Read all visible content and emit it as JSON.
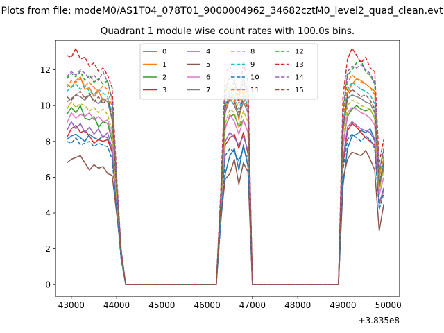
{
  "figure": {
    "suptitle": "Plots from file: modeM0/AS1T04_078T01_9000004962_34682cztM0_level2_quad_clean.evt",
    "background": "#ffffff"
  },
  "chart_data": {
    "type": "line",
    "title": "Quadrant 1 module wise count rates with 100.0s bins.",
    "xlabel": "",
    "ylabel": "",
    "x_offset_label": "+3.835e8",
    "xlim": [
      42650,
      50250
    ],
    "ylim": [
      -0.65,
      13.65
    ],
    "x_ticks": [
      43000,
      44000,
      45000,
      46000,
      47000,
      48000,
      49000,
      50000
    ],
    "x_tick_labels": [
      "43000",
      "44000",
      "45000",
      "46000",
      "47000",
      "48000",
      "49000",
      "50000"
    ],
    "y_ticks": [
      0,
      2,
      4,
      6,
      8,
      10,
      12
    ],
    "y_tick_labels": [
      "0",
      "2",
      "4",
      "6",
      "8",
      "10",
      "12"
    ],
    "grid": false,
    "legend": {
      "placement": "upper-center",
      "columns": 4
    },
    "x": [
      42900,
      43000,
      43100,
      43200,
      43300,
      43400,
      43500,
      43600,
      43700,
      43800,
      43900,
      44000,
      44100,
      44200,
      46200,
      46300,
      46400,
      46500,
      46600,
      46700,
      46800,
      46900,
      47000,
      48900,
      49000,
      49100,
      49200,
      49300,
      49400,
      49500,
      49600,
      49700,
      49800,
      49900
    ],
    "series": [
      {
        "name": "0",
        "color": "#1f77b4",
        "dash": "solid",
        "values": [
          8.1,
          8.3,
          8.4,
          8.2,
          8.0,
          8.4,
          8.2,
          8.1,
          8.3,
          8.2,
          7.4,
          4.5,
          1.5,
          0,
          0,
          3.5,
          6.2,
          7.2,
          7.6,
          6.4,
          7.8,
          6.6,
          0,
          0,
          5.5,
          7.6,
          8.3,
          8.4,
          8.6,
          8.5,
          8.7,
          8.1,
          4.5,
          5.4
        ]
      },
      {
        "name": "1",
        "color": "#ff7f0e",
        "dash": "solid",
        "values": [
          11.2,
          11.0,
          11.4,
          11.6,
          10.9,
          11.0,
          10.5,
          10.8,
          10.3,
          10.4,
          9.2,
          5.2,
          1.9,
          0,
          0,
          4.5,
          9.8,
          10.6,
          10.4,
          9.2,
          10.7,
          9.9,
          0,
          0,
          8.8,
          10.7,
          11.2,
          11.5,
          11.4,
          11.2,
          11.0,
          10.8,
          6.2,
          7.0
        ]
      },
      {
        "name": "2",
        "color": "#2ca02c",
        "dash": "solid",
        "values": [
          9.5,
          9.9,
          9.6,
          10.0,
          9.3,
          9.2,
          9.4,
          8.8,
          9.1,
          9.0,
          8.0,
          4.6,
          1.6,
          0,
          0,
          4.0,
          8.8,
          9.4,
          9.5,
          8.8,
          9.2,
          8.5,
          0,
          0,
          7.8,
          9.4,
          9.8,
          10.0,
          9.8,
          9.7,
          9.8,
          9.3,
          5.4,
          6.5
        ]
      },
      {
        "name": "3",
        "color": "#d62728",
        "dash": "solid",
        "values": [
          8.2,
          8.7,
          8.9,
          8.5,
          8.6,
          8.3,
          7.9,
          8.1,
          8.0,
          8.1,
          7.4,
          4.3,
          1.5,
          0,
          0,
          3.6,
          7.8,
          8.2,
          8.4,
          7.6,
          8.5,
          7.3,
          0,
          0,
          6.7,
          8.6,
          9.0,
          8.8,
          8.5,
          8.2,
          8.0,
          7.8,
          4.5,
          5.3
        ]
      },
      {
        "name": "4",
        "color": "#9467bd",
        "dash": "solid",
        "values": [
          8.6,
          9.1,
          8.7,
          9.0,
          8.5,
          8.8,
          8.4,
          8.7,
          8.2,
          8.5,
          7.6,
          4.4,
          1.5,
          0,
          0,
          3.7,
          8.0,
          8.5,
          8.2,
          7.8,
          8.3,
          7.5,
          0,
          0,
          7.0,
          8.8,
          9.1,
          8.9,
          8.7,
          8.6,
          8.5,
          8.0,
          4.6,
          5.3
        ]
      },
      {
        "name": "5",
        "color": "#8c564b",
        "dash": "solid",
        "values": [
          6.8,
          7.0,
          7.1,
          7.2,
          6.8,
          6.4,
          6.7,
          6.5,
          6.6,
          6.2,
          6.1,
          4.0,
          1.8,
          0,
          0,
          3.7,
          5.9,
          6.2,
          7.0,
          5.6,
          6.8,
          6.3,
          0,
          0,
          5.9,
          7.0,
          7.4,
          7.3,
          7.2,
          7.5,
          7.0,
          6.4,
          3.0,
          4.5
        ]
      },
      {
        "name": "6",
        "color": "#e377c2",
        "dash": "solid",
        "values": [
          9.0,
          9.6,
          9.3,
          9.5,
          9.4,
          9.6,
          9.2,
          9.4,
          9.1,
          9.2,
          8.3,
          4.8,
          1.6,
          0,
          0,
          3.9,
          8.7,
          9.5,
          9.1,
          8.4,
          9.2,
          8.5,
          0,
          0,
          7.6,
          9.6,
          9.9,
          9.8,
          9.6,
          9.5,
          9.3,
          8.9,
          5.0,
          6.0
        ]
      },
      {
        "name": "7",
        "color": "#7f7f7f",
        "dash": "solid",
        "values": [
          10.2,
          10.4,
          10.6,
          10.5,
          10.3,
          10.6,
          10.3,
          10.1,
          10.4,
          10.2,
          9.2,
          5.2,
          1.7,
          0,
          0,
          4.3,
          9.6,
          10.4,
          10.0,
          9.4,
          10.2,
          9.6,
          0,
          0,
          8.5,
          10.4,
          10.6,
          10.5,
          10.4,
          10.2,
          10.1,
          9.6,
          5.5,
          6.7
        ]
      },
      {
        "name": "8",
        "color": "#bcbd22",
        "dash": "dashed",
        "values": [
          9.8,
          10.2,
          9.9,
          10.1,
          10.0,
          9.7,
          9.9,
          9.6,
          9.8,
          9.5,
          8.6,
          4.9,
          1.6,
          0,
          0,
          4.0,
          9.0,
          9.8,
          9.6,
          8.8,
          9.7,
          9.1,
          0,
          0,
          8.2,
          10.0,
          10.3,
          10.2,
          10.0,
          9.9,
          9.8,
          9.3,
          5.2,
          6.4
        ]
      },
      {
        "name": "9",
        "color": "#17becf",
        "dash": "dashed",
        "values": [
          10.8,
          11.0,
          11.2,
          10.9,
          11.1,
          10.8,
          10.6,
          10.9,
          10.7,
          10.5,
          9.6,
          5.4,
          1.8,
          0,
          0,
          4.4,
          10.0,
          10.8,
          10.5,
          9.8,
          10.6,
          10.0,
          0,
          0,
          8.9,
          10.9,
          11.3,
          11.1,
          10.9,
          10.8,
          10.6,
          10.1,
          5.8,
          6.9
        ]
      },
      {
        "name": "10",
        "color": "#1f77b4",
        "dash": "dashed",
        "values": [
          8.0,
          7.9,
          8.2,
          7.8,
          7.9,
          8.0,
          7.7,
          7.9,
          7.8,
          7.7,
          7.0,
          4.2,
          1.4,
          0,
          0,
          3.4,
          7.2,
          7.6,
          7.4,
          6.9,
          7.6,
          7.0,
          0,
          0,
          6.4,
          8.1,
          8.4,
          8.2,
          8.0,
          8.3,
          8.1,
          7.6,
          4.2,
          5.1
        ]
      },
      {
        "name": "11",
        "color": "#ff7f0e",
        "dash": "dashed",
        "values": [
          11.0,
          11.4,
          11.3,
          11.5,
          11.1,
          11.3,
          11.0,
          10.8,
          11.1,
          10.9,
          9.9,
          5.6,
          1.8,
          0,
          0,
          4.6,
          10.3,
          11.1,
          10.9,
          10.1,
          10.9,
          10.3,
          0,
          0,
          9.2,
          11.3,
          11.7,
          11.5,
          11.3,
          11.2,
          11.0,
          10.6,
          6.0,
          7.2
        ]
      },
      {
        "name": "12",
        "color": "#2ca02c",
        "dash": "dashed",
        "values": [
          11.5,
          11.8,
          11.6,
          11.9,
          11.4,
          11.7,
          11.3,
          11.5,
          11.2,
          11.4,
          10.3,
          5.8,
          1.9,
          0,
          0,
          4.8,
          10.7,
          11.5,
          11.1,
          10.5,
          11.3,
          10.7,
          0,
          0,
          9.6,
          11.7,
          12.0,
          12.4,
          12.5,
          11.9,
          11.7,
          11.2,
          6.3,
          7.5
        ]
      },
      {
        "name": "13",
        "color": "#d62728",
        "dash": "dashed",
        "values": [
          12.8,
          12.7,
          13.2,
          12.6,
          12.7,
          12.2,
          12.4,
          11.9,
          12.1,
          11.7,
          11.0,
          6.1,
          2.0,
          0,
          0,
          5.2,
          11.8,
          12.2,
          11.5,
          10.2,
          12.4,
          11.3,
          0,
          0,
          10.5,
          12.6,
          13.2,
          12.8,
          12.4,
          12.7,
          12.1,
          11.9,
          6.8,
          8.1
        ]
      },
      {
        "name": "14",
        "color": "#9467bd",
        "dash": "dashed",
        "values": [
          11.6,
          11.9,
          11.7,
          12.0,
          11.8,
          11.5,
          11.7,
          11.4,
          11.9,
          11.3,
          10.4,
          5.9,
          1.9,
          0,
          0,
          4.9,
          10.9,
          11.7,
          11.3,
          10.7,
          11.5,
          10.8,
          0,
          0,
          9.8,
          11.9,
          12.2,
          12.1,
          12.3,
          12.0,
          11.8,
          11.3,
          6.4,
          7.6
        ]
      },
      {
        "name": "15",
        "color": "#8c564b",
        "dash": "dashed",
        "values": [
          10.5,
          10.3,
          10.6,
          10.8,
          10.4,
          10.7,
          10.2,
          10.5,
          10.1,
          10.4,
          9.4,
          5.3,
          1.7,
          0,
          0,
          4.5,
          9.9,
          10.6,
          10.2,
          9.6,
          10.4,
          9.8,
          0,
          0,
          8.8,
          10.6,
          10.9,
          10.7,
          10.5,
          10.6,
          10.3,
          9.8,
          5.6,
          6.8
        ]
      }
    ]
  }
}
